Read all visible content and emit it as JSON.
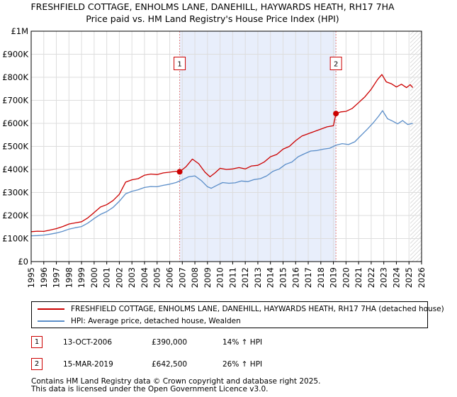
{
  "title_line1": "FRESHFIELD COTTAGE, ENHOLMS LANE, DANEHILL, HAYWARDS HEATH, RH17 7HA",
  "title_line2": "Price paid vs. HM Land Registry's House Price Index (HPI)",
  "chart_data": {
    "type": "line",
    "title": "FRESHFIELD COTTAGE, ENHOLMS LANE, DANEHILL, HAYWARDS HEATH, RH17 7HA",
    "subtitle": "Price paid vs. HM Land Registry's House Price Index (HPI)",
    "xlabel": "",
    "ylabel": "",
    "xlim": [
      1995,
      2026
    ],
    "ylim": [
      0,
      1000000
    ],
    "x_ticks": [
      1995,
      1996,
      1997,
      1998,
      1999,
      2000,
      2001,
      2002,
      2003,
      2004,
      2005,
      2006,
      2007,
      2008,
      2009,
      2010,
      2011,
      2012,
      2013,
      2014,
      2015,
      2016,
      2017,
      2018,
      2019,
      2020,
      2021,
      2022,
      2023,
      2024,
      2025,
      2026
    ],
    "y_ticks": [
      {
        "value": 0,
        "label": "£0"
      },
      {
        "value": 100000,
        "label": "£100K"
      },
      {
        "value": 200000,
        "label": "£200K"
      },
      {
        "value": 300000,
        "label": "£300K"
      },
      {
        "value": 400000,
        "label": "£400K"
      },
      {
        "value": 500000,
        "label": "£500K"
      },
      {
        "value": 600000,
        "label": "£600K"
      },
      {
        "value": 700000,
        "label": "£700K"
      },
      {
        "value": 800000,
        "label": "£800K"
      },
      {
        "value": 900000,
        "label": "£900K"
      },
      {
        "value": 1000000,
        "label": "£1M"
      }
    ],
    "grid": true,
    "shaded_region": {
      "from": 2006.79,
      "to": 2019.2,
      "color": "#e8eefb"
    },
    "future_hatch_from": 2025.1,
    "series": [
      {
        "name": "FRESHFIELD COTTAGE, ENHOLMS LANE, DANEHILL, HAYWARDS HEATH, RH17 7HA (detached house)",
        "color": "#cc0000",
        "x": [
          1995.0,
          1995.5,
          1996.0,
          1996.5,
          1997.0,
          1997.5,
          1998.0,
          1998.5,
          1999.0,
          1999.5,
          2000.0,
          2000.5,
          2001.0,
          2001.5,
          2002.0,
          2002.5,
          2003.0,
          2003.5,
          2004.0,
          2004.5,
          2005.0,
          2005.5,
          2006.0,
          2006.5,
          2006.79,
          2007.3,
          2007.8,
          2008.3,
          2008.8,
          2009.2,
          2009.6,
          2010.0,
          2010.5,
          2011.0,
          2011.5,
          2012.0,
          2012.5,
          2013.0,
          2013.5,
          2014.0,
          2014.5,
          2015.0,
          2015.5,
          2016.0,
          2016.5,
          2017.0,
          2017.5,
          2018.0,
          2018.5,
          2019.0,
          2019.2,
          2019.6,
          2020.0,
          2020.5,
          2021.0,
          2021.5,
          2022.0,
          2022.5,
          2022.85,
          2023.2,
          2023.6,
          2024.0,
          2024.4,
          2024.8,
          2025.1,
          2025.3
        ],
        "y": [
          130000,
          132000,
          131000,
          137000,
          143000,
          152000,
          163000,
          168000,
          173000,
          190000,
          213000,
          237000,
          247000,
          265000,
          292000,
          345000,
          355000,
          360000,
          375000,
          380000,
          378000,
          385000,
          388000,
          392000,
          390000,
          412000,
          445000,
          425000,
          388000,
          368000,
          385000,
          405000,
          400000,
          402000,
          408000,
          402000,
          415000,
          418000,
          432000,
          455000,
          465000,
          488000,
          500000,
          525000,
          545000,
          555000,
          565000,
          575000,
          585000,
          590000,
          642500,
          650000,
          652000,
          665000,
          690000,
          715000,
          748000,
          790000,
          812000,
          780000,
          772000,
          758000,
          770000,
          755000,
          768000,
          755000
        ]
      },
      {
        "name": "HPI: Average price, detached house, Wealden",
        "color": "#5b8ec9",
        "x": [
          1995.0,
          1995.5,
          1996.0,
          1996.5,
          1997.0,
          1997.5,
          1998.0,
          1998.5,
          1999.0,
          1999.5,
          2000.0,
          2000.5,
          2001.0,
          2001.5,
          2002.0,
          2002.5,
          2003.0,
          2003.5,
          2004.0,
          2004.5,
          2005.0,
          2005.5,
          2006.0,
          2006.5,
          2007.0,
          2007.5,
          2008.0,
          2008.5,
          2009.0,
          2009.3,
          2009.7,
          2010.2,
          2010.7,
          2011.2,
          2011.7,
          2012.2,
          2012.7,
          2013.2,
          2013.7,
          2014.2,
          2014.7,
          2015.2,
          2015.7,
          2016.2,
          2016.7,
          2017.2,
          2017.7,
          2018.2,
          2018.7,
          2019.2,
          2019.7,
          2020.2,
          2020.7,
          2021.2,
          2021.7,
          2022.2,
          2022.6,
          2022.9,
          2023.3,
          2023.7,
          2024.1,
          2024.5,
          2024.9,
          2025.3
        ],
        "y": [
          112000,
          113000,
          115000,
          119000,
          124000,
          131000,
          141000,
          147000,
          152000,
          167000,
          187000,
          205000,
          217000,
          235000,
          262000,
          294000,
          305000,
          312000,
          322000,
          326000,
          325000,
          331000,
          336000,
          343000,
          355000,
          368000,
          372000,
          352000,
          325000,
          318000,
          330000,
          343000,
          340000,
          342000,
          350000,
          347000,
          356000,
          360000,
          372000,
          392000,
          402000,
          422000,
          432000,
          455000,
          468000,
          480000,
          482000,
          488000,
          492000,
          505000,
          512000,
          508000,
          520000,
          548000,
          575000,
          605000,
          632000,
          655000,
          620000,
          610000,
          598000,
          612000,
          595000,
          600000
        ]
      }
    ],
    "annotations": [
      {
        "label": "1",
        "x": 2006.79,
        "y": 390000,
        "box_value": 860000
      },
      {
        "label": "2",
        "x": 2019.2,
        "y": 642500,
        "box_value": 860000
      }
    ]
  },
  "legend": [
    {
      "label": "FRESHFIELD COTTAGE, ENHOLMS LANE, DANEHILL, HAYWARDS HEATH, RH17 7HA (detached house)",
      "color": "#cc0000"
    },
    {
      "label": "HPI: Average price, detached house, Wealden",
      "color": "#5b8ec9"
    }
  ],
  "transactions": [
    {
      "id": "1",
      "date": "13-OCT-2006",
      "price": "£390,000",
      "hpi": "14% ↑ HPI"
    },
    {
      "id": "2",
      "date": "15-MAR-2019",
      "price": "£642,500",
      "hpi": "26% ↑ HPI"
    }
  ],
  "footer_line1": "Contains HM Land Registry data © Crown copyright and database right 2025.",
  "footer_line2": "This data is licensed under the Open Government Licence v3.0."
}
